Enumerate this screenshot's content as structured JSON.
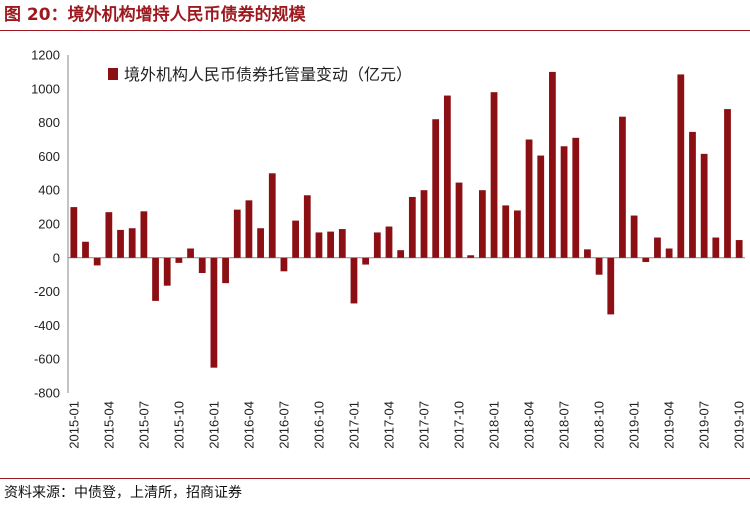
{
  "header": {
    "title": "图 20：境外机构增持人民币债券的规模"
  },
  "footer": {
    "source": "资料来源：中债登，上清所，招商证券"
  },
  "chart_data": {
    "type": "bar",
    "title": "",
    "xlabel": "",
    "ylabel": "",
    "ylim": [
      -800,
      1200
    ],
    "yticks": [
      1200,
      1000,
      800,
      600,
      400,
      200,
      0,
      -200,
      -400,
      -600,
      -800
    ],
    "grid": false,
    "legend": "top-left",
    "colors": {
      "bar": "#8b0f13"
    },
    "series": [
      {
        "name": "境外机构人民币债券托管量变动（亿元）",
        "values": [
          300,
          95,
          -45,
          270,
          165,
          175,
          275,
          -255,
          -165,
          -30,
          55,
          -90,
          -650,
          -150,
          285,
          340,
          175,
          500,
          -80,
          220,
          370,
          150,
          155,
          170,
          -270,
          -40,
          150,
          185,
          45,
          360,
          400,
          820,
          960,
          445,
          15,
          400,
          980,
          310,
          280,
          700,
          605,
          1100,
          660,
          710,
          50,
          -100,
          -335,
          835,
          250,
          -25,
          120,
          55,
          1085,
          745,
          615,
          120,
          880,
          105
        ]
      }
    ],
    "categories": [
      "2015-01",
      "2015-02",
      "2015-03",
      "2015-04",
      "2015-05",
      "2015-06",
      "2015-07",
      "2015-08",
      "2015-09",
      "2015-10",
      "2015-11",
      "2015-12",
      "2016-01",
      "2016-02",
      "2016-03",
      "2016-04",
      "2016-05",
      "2016-06",
      "2016-07",
      "2016-08",
      "2016-09",
      "2016-10",
      "2016-11",
      "2016-12",
      "2017-01",
      "2017-02",
      "2017-03",
      "2017-04",
      "2017-05",
      "2017-06",
      "2017-07",
      "2017-08",
      "2017-09",
      "2017-10",
      "2017-11",
      "2017-12",
      "2018-01",
      "2018-02",
      "2018-03",
      "2018-04",
      "2018-05",
      "2018-06",
      "2018-07",
      "2018-08",
      "2018-09",
      "2018-10",
      "2018-11",
      "2018-12",
      "2019-01",
      "2019-02",
      "2019-03",
      "2019-04",
      "2019-05",
      "2019-06",
      "2019-07",
      "2019-08",
      "2019-09",
      "2019-10"
    ],
    "xtick_labels": [
      "2015-01",
      "2015-04",
      "2015-07",
      "2015-10",
      "2016-01",
      "2016-04",
      "2016-07",
      "2016-10",
      "2017-01",
      "2017-04",
      "2017-07",
      "2017-10",
      "2018-01",
      "2018-04",
      "2018-07",
      "2018-10",
      "2019-01",
      "2019-04",
      "2019-07",
      "2019-10"
    ]
  }
}
